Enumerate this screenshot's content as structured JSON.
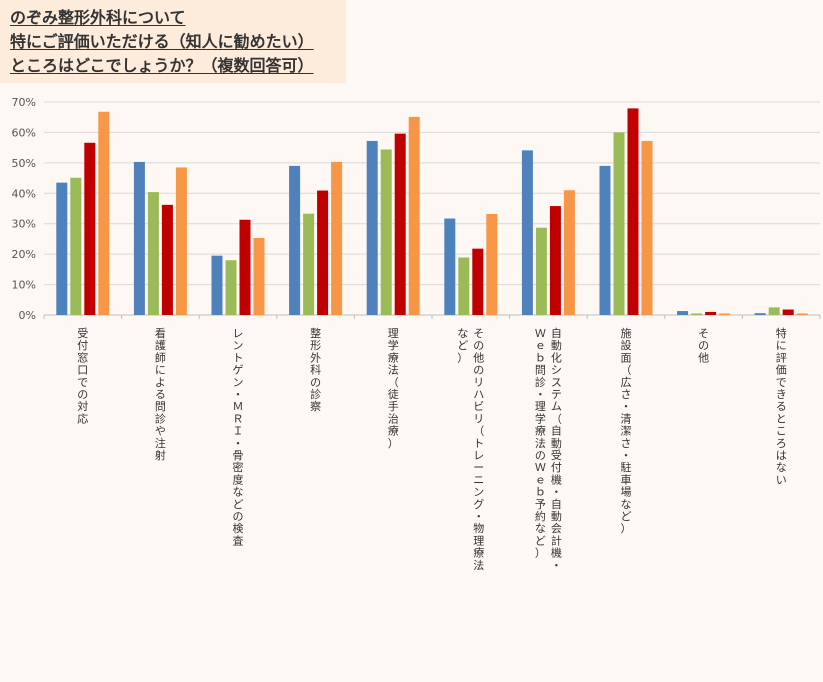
{
  "title_lines": [
    "のぞみ整形外科について",
    "特にご評価いただける（知人に勧めたい）",
    "ところはどこでしょうか？（複数回答可）"
  ],
  "colors": {
    "series": [
      "#4f81bd",
      "#9bbb59",
      "#c00000",
      "#f79646"
    ],
    "grid": "#d9d9d9",
    "background": "#fdf8f3",
    "title_bg": "#fdebdc"
  },
  "chart_data": {
    "type": "bar",
    "y_ticks": [
      "0%",
      "10%",
      "20%",
      "30%",
      "40%",
      "50%",
      "60%",
      "70%"
    ],
    "ylim": [
      0,
      70
    ],
    "grid": true,
    "categories": [
      [
        "受付窓口での対応"
      ],
      [
        "看護師による問診や注射"
      ],
      [
        "レントゲン・ＭＲＩ・骨密度などの検査"
      ],
      [
        "整形外科の診察"
      ],
      [
        "理学療法（徒手治療）"
      ],
      [
        "その他のリハビリ（トレーニング・物理療法",
        "など）"
      ],
      [
        "自動化システム（自動受付機・自動会計機・",
        "Ｗｅｂ問診・理学療法のＷｅｂ予約など）"
      ],
      [
        "施設面（広さ・清潔さ・駐車場など）"
      ],
      [
        "その他"
      ],
      [
        "特に評価できるところはない"
      ]
    ],
    "series": [
      {
        "values": [
          43.5,
          50.3,
          19.5,
          49.0,
          57.2,
          31.7,
          54.1,
          49.0,
          1.3,
          0.6
        ]
      },
      {
        "values": [
          45.1,
          40.4,
          18.0,
          33.3,
          54.4,
          18.9,
          28.7,
          60.0,
          0.5,
          2.5
        ]
      },
      {
        "values": [
          56.6,
          36.2,
          31.3,
          40.9,
          59.6,
          21.8,
          35.8,
          67.9,
          1.0,
          1.8
        ]
      },
      {
        "values": [
          66.8,
          48.5,
          25.3,
          50.3,
          65.1,
          33.2,
          41.0,
          57.2,
          0.5,
          0.5
        ]
      }
    ]
  }
}
